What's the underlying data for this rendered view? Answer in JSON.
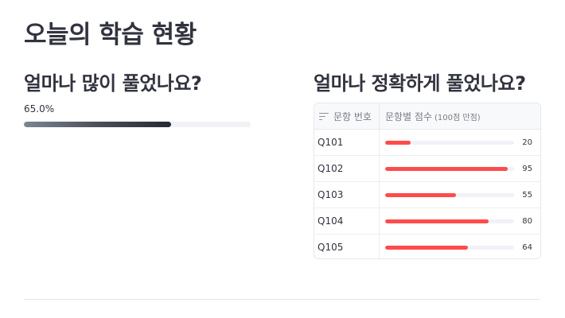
{
  "page": {
    "title": "오늘의 학습 현황"
  },
  "left": {
    "heading": "얼마나 많이 풀었나요?",
    "progress": {
      "text": "65.0%",
      "value": 0.65
    }
  },
  "right": {
    "heading": "얼마나 정확하게 풀었나요?",
    "table": {
      "col1_header": "문항 번호",
      "col2_header": "문항별 점수",
      "col2_header_note": "(100점 만점)",
      "max": 100,
      "rows": [
        {
          "id": "Q101",
          "score": 20
        },
        {
          "id": "Q102",
          "score": 95
        },
        {
          "id": "Q103",
          "score": 55
        },
        {
          "id": "Q104",
          "score": 80
        },
        {
          "id": "Q105",
          "score": 64
        }
      ]
    }
  },
  "colors": {
    "bar": "#ff4b4b",
    "progress": "#262a33",
    "track": "#f0f2f6"
  },
  "icons": {
    "sort": "sort-lines-icon"
  }
}
